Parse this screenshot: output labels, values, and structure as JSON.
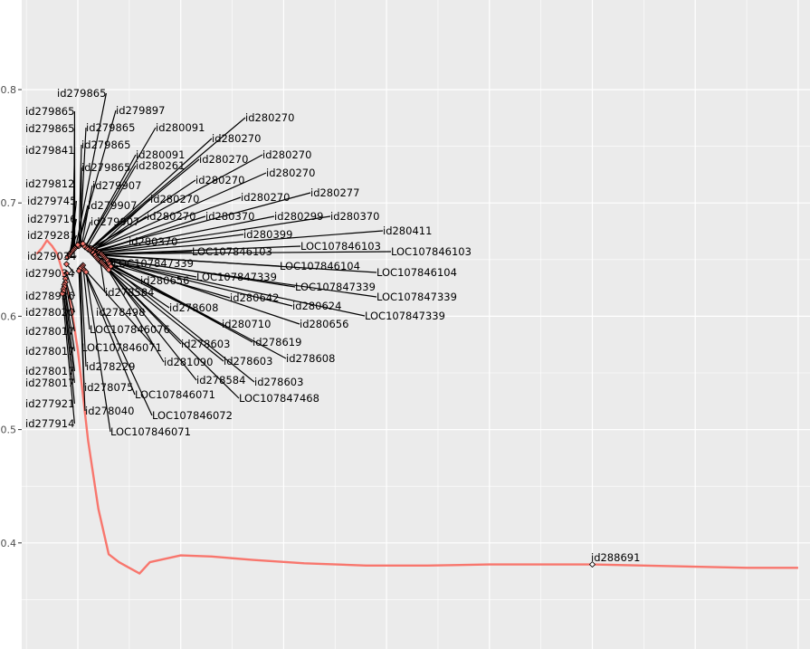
{
  "chart_data": {
    "type": "line",
    "title": "",
    "xlabel": "",
    "ylabel": "",
    "ylim": [
      0.32,
      0.86
    ],
    "grid": true,
    "y_ticks": [
      0.4,
      0.5,
      0.6,
      0.7,
      0.8
    ],
    "y_tick_labels": [
      "0.4",
      "0.5",
      "0.6",
      "0.7",
      "0.8"
    ],
    "colors": {
      "line": "#f8766d",
      "panel": "#ebebeb",
      "grid": "#ffffff",
      "text": "#000000"
    },
    "series": [
      {
        "x": [
          0.6,
          0.65,
          0.7,
          0.75,
          0.8,
          0.85,
          0.9,
          0.95,
          1.0,
          1.1,
          1.2,
          1.3,
          1.4,
          1.5,
          1.6,
          1.7,
          1.8,
          2.0,
          2.3,
          2.7,
          3.2,
          3.8,
          4.4,
          5.0,
          5.5,
          6.0,
          6.5,
          7.0,
          7.5,
          8.0
        ],
        "y": [
          0.655,
          0.66,
          0.667,
          0.662,
          0.655,
          0.64,
          0.624,
          0.6,
          0.57,
          0.49,
          0.43,
          0.39,
          0.383,
          0.378,
          0.373,
          0.383,
          0.385,
          0.389,
          0.388,
          0.385,
          0.382,
          0.38,
          0.38,
          0.381,
          0.381,
          0.381,
          0.38,
          0.379,
          0.378,
          0.378
        ]
      }
    ],
    "points": [
      {
        "label": "id279865",
        "x": 0.98,
        "y": 0.661
      },
      {
        "label": "id279865",
        "x": 0.97,
        "y": 0.66
      },
      {
        "label": "id279865",
        "x": 0.96,
        "y": 0.659
      },
      {
        "label": "id279841",
        "x": 0.95,
        "y": 0.658
      },
      {
        "label": "id279812",
        "x": 0.94,
        "y": 0.657
      },
      {
        "label": "id279745",
        "x": 0.93,
        "y": 0.656
      },
      {
        "label": "id279716",
        "x": 0.92,
        "y": 0.655
      },
      {
        "label": "id279281",
        "x": 0.91,
        "y": 0.653
      },
      {
        "label": "id279034",
        "x": 0.9,
        "y": 0.652
      },
      {
        "label": "id279034",
        "x": 0.89,
        "y": 0.646
      },
      {
        "label": "id278936",
        "x": 0.89,
        "y": 0.638
      },
      {
        "label": "id278020",
        "x": 0.88,
        "y": 0.633
      },
      {
        "label": "id278017",
        "x": 0.88,
        "y": 0.63
      },
      {
        "label": "id278017",
        "x": 0.87,
        "y": 0.628
      },
      {
        "label": "id278017",
        "x": 0.87,
        "y": 0.626
      },
      {
        "label": "id278017",
        "x": 0.86,
        "y": 0.624
      },
      {
        "label": "id277921",
        "x": 0.86,
        "y": 0.622
      },
      {
        "label": "id277914",
        "x": 0.85,
        "y": 0.62
      },
      {
        "label": "id279897",
        "x": 1.0,
        "y": 0.662
      },
      {
        "label": "id279865",
        "x": 1.02,
        "y": 0.663
      },
      {
        "label": "id279865",
        "x": 1.01,
        "y": 0.662
      },
      {
        "label": "id279865",
        "x": 1.03,
        "y": 0.664
      },
      {
        "label": "id279907",
        "x": 1.04,
        "y": 0.664
      },
      {
        "label": "id279907",
        "x": 1.0,
        "y": 0.663
      },
      {
        "label": "id279907",
        "x": 1.05,
        "y": 0.664
      },
      {
        "label": "id280091",
        "x": 1.08,
        "y": 0.662
      },
      {
        "label": "id280091",
        "x": 1.07,
        "y": 0.661
      },
      {
        "label": "id280261",
        "x": 1.09,
        "y": 0.66
      },
      {
        "label": "id280270",
        "x": 1.12,
        "y": 0.66
      },
      {
        "label": "id280270",
        "x": 1.11,
        "y": 0.659
      },
      {
        "label": "id280270",
        "x": 1.13,
        "y": 0.66
      },
      {
        "label": "id280270",
        "x": 1.1,
        "y": 0.659
      },
      {
        "label": "id280270",
        "x": 1.14,
        "y": 0.659
      },
      {
        "label": "id280270",
        "x": 1.15,
        "y": 0.659
      },
      {
        "label": "id280270",
        "x": 1.12,
        "y": 0.658
      },
      {
        "label": "id280270",
        "x": 1.16,
        "y": 0.658
      },
      {
        "label": "id280270",
        "x": 1.13,
        "y": 0.657
      },
      {
        "label": "id280277",
        "x": 1.17,
        "y": 0.658
      },
      {
        "label": "id280299",
        "x": 1.18,
        "y": 0.657
      },
      {
        "label": "id280370",
        "x": 1.19,
        "y": 0.657
      },
      {
        "label": "id280370",
        "x": 1.14,
        "y": 0.656
      },
      {
        "label": "id280370",
        "x": 1.15,
        "y": 0.656
      },
      {
        "label": "id280399",
        "x": 1.2,
        "y": 0.656
      },
      {
        "label": "id280411",
        "x": 1.21,
        "y": 0.656
      },
      {
        "label": "LOC107846103",
        "x": 1.22,
        "y": 0.655
      },
      {
        "label": "LOC107846103",
        "x": 1.23,
        "y": 0.655
      },
      {
        "label": "LOC107846103",
        "x": 1.16,
        "y": 0.654
      },
      {
        "label": "LOC107846104",
        "x": 1.17,
        "y": 0.654
      },
      {
        "label": "LOC107846104",
        "x": 1.24,
        "y": 0.654
      },
      {
        "label": "LOC107847339",
        "x": 1.25,
        "y": 0.653
      },
      {
        "label": "LOC107847339",
        "x": 1.18,
        "y": 0.652
      },
      {
        "label": "LOC107847339",
        "x": 1.26,
        "y": 0.652
      },
      {
        "label": "LOC107847339",
        "x": 1.27,
        "y": 0.651
      },
      {
        "label": "LOC107847339",
        "x": 1.19,
        "y": 0.651
      },
      {
        "label": "id280656",
        "x": 1.2,
        "y": 0.65
      },
      {
        "label": "id280656",
        "x": 1.28,
        "y": 0.65
      },
      {
        "label": "id280642",
        "x": 1.21,
        "y": 0.649
      },
      {
        "label": "id280624",
        "x": 1.29,
        "y": 0.649
      },
      {
        "label": "id278584",
        "x": 1.22,
        "y": 0.648
      },
      {
        "label": "id278608",
        "x": 1.23,
        "y": 0.648
      },
      {
        "label": "id278608",
        "x": 1.3,
        "y": 0.647
      },
      {
        "label": "id278498",
        "x": 1.24,
        "y": 0.647
      },
      {
        "label": "id280710",
        "x": 1.25,
        "y": 0.646
      },
      {
        "label": "id278619",
        "x": 1.31,
        "y": 0.646
      },
      {
        "label": "LOC107846076",
        "x": 1.05,
        "y": 0.645
      },
      {
        "label": "LOC107846071",
        "x": 1.04,
        "y": 0.644
      },
      {
        "label": "id278603",
        "x": 1.26,
        "y": 0.645
      },
      {
        "label": "id278603",
        "x": 1.27,
        "y": 0.644
      },
      {
        "label": "id278603",
        "x": 1.32,
        "y": 0.644
      },
      {
        "label": "id281090",
        "x": 1.28,
        "y": 0.643
      },
      {
        "label": "id278229",
        "x": 1.03,
        "y": 0.643
      },
      {
        "label": "id278584",
        "x": 1.29,
        "y": 0.642
      },
      {
        "label": "id278075",
        "x": 1.02,
        "y": 0.642
      },
      {
        "label": "LOC107846071",
        "x": 1.06,
        "y": 0.641
      },
      {
        "label": "LOC107847468",
        "x": 1.3,
        "y": 0.641
      },
      {
        "label": "id278040",
        "x": 1.01,
        "y": 0.64
      },
      {
        "label": "LOC107846072",
        "x": 1.07,
        "y": 0.64
      },
      {
        "label": "LOC107846071",
        "x": 1.08,
        "y": 0.639
      },
      {
        "label": "id288691",
        "x": 6.0,
        "y": 0.381
      }
    ]
  }
}
